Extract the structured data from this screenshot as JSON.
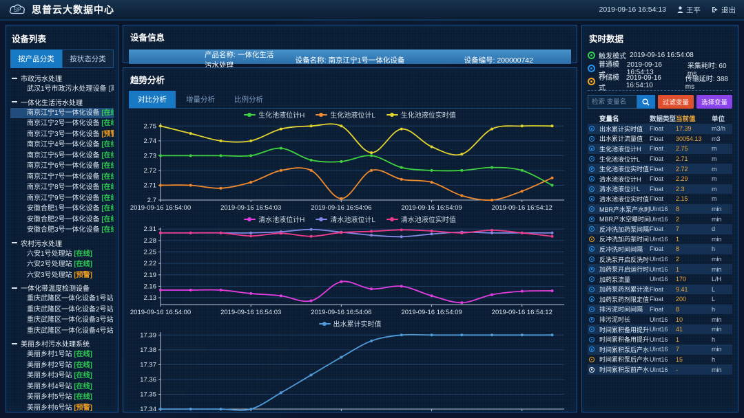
{
  "header": {
    "title": "思普云大数据中心",
    "logo": "SP",
    "datetime": "2019-09-16 16:54:13",
    "user": "王平",
    "logout": "退出"
  },
  "sidebar": {
    "title": "设备列表",
    "tabs": [
      {
        "label": "按产品分类",
        "active": true
      },
      {
        "label": "按状态分类",
        "active": false
      }
    ],
    "status_colors": {
      "在线": "#2fce53",
      "预警": "#f09d1e",
      "离线": "#8a97a8"
    },
    "groups": [
      {
        "label": "市政污水处理",
        "items": [
          {
            "name": "武汉1号市政污水处理设备",
            "status": "离线"
          }
        ]
      },
      {
        "label": "一体化生活污水处理",
        "items": [
          {
            "name": "南京江宁1号一体化设备",
            "status": "在线",
            "selected": true
          },
          {
            "name": "南京江宁2号一体化设备",
            "status": "在线"
          },
          {
            "name": "南京江宁3号一体化设备",
            "status": "预警"
          },
          {
            "name": "南京江宁4号一体化设备",
            "status": "在线"
          },
          {
            "name": "南京江宁5号一体化设备",
            "status": "在线"
          },
          {
            "name": "南京江宁6号一体化设备",
            "status": "在线"
          },
          {
            "name": "南京江宁7号一体化设备",
            "status": "在线"
          },
          {
            "name": "南京江宁8号一体化设备",
            "status": "在线"
          },
          {
            "name": "南京江宁9号一体化设备",
            "status": "在线"
          },
          {
            "name": "安徽合肥1号一体化设备",
            "status": "在线"
          },
          {
            "name": "安徽合肥2号一体化设备",
            "status": "在线"
          },
          {
            "name": "安徽合肥3号一体化设备",
            "status": "在线"
          }
        ]
      },
      {
        "label": "农村污水处理",
        "items": [
          {
            "name": "六安1号处理站",
            "status": "在线"
          },
          {
            "name": "六安2号处理站",
            "status": "在线"
          },
          {
            "name": "六安3号处理站",
            "status": "预警"
          }
        ]
      },
      {
        "label": "一体化带温度检测设备",
        "items": [
          {
            "name": "重庆武隆区一体化设备1号站",
            "status": "预警"
          },
          {
            "name": "重庆武隆区一体化设备2号站",
            "status": "预警"
          },
          {
            "name": "重庆武隆区一体化设备3号站",
            "status": "在线"
          },
          {
            "name": "重庆武隆区一体化设备4号站",
            "status": "预警"
          }
        ]
      },
      {
        "label": "美丽乡村污水处理系统",
        "items": [
          {
            "name": "美丽乡村1号站",
            "status": "在线"
          },
          {
            "name": "美丽乡村2号站",
            "status": "在线"
          },
          {
            "name": "美丽乡村3号站",
            "status": "在线"
          },
          {
            "name": "美丽乡村4号站",
            "status": "在线"
          },
          {
            "name": "美丽乡村5号站",
            "status": "在线"
          },
          {
            "name": "美丽乡村6号站",
            "status": "预警"
          }
        ]
      }
    ]
  },
  "device_info": {
    "title": "设备信息",
    "fields": [
      {
        "label": "产品名称:",
        "value": "一体化生活污水处理"
      },
      {
        "label": "设备名称:",
        "value": "南京江宁1号一体化设备"
      },
      {
        "label": "设备编号:",
        "value": "200000742"
      }
    ]
  },
  "trend": {
    "title": "趋势分析",
    "tabs": [
      {
        "label": "对比分析",
        "active": true
      },
      {
        "label": "增量分析",
        "active": false
      },
      {
        "label": "比例分析",
        "active": false
      }
    ]
  },
  "chart_data": [
    {
      "type": "line",
      "title": "生化池液位对比",
      "legend_position": "top",
      "grid": true,
      "x": [
        0,
        1,
        2,
        3,
        4,
        5,
        6,
        7,
        8,
        9,
        10,
        11,
        12,
        13
      ],
      "xlim": [
        0,
        13.4
      ],
      "x_ticks": [
        0,
        3,
        6,
        9,
        12
      ],
      "x_labels": [
        "2019-09-16 16:54:00",
        "2019-09-16 16:54:03",
        "2019-09-16 16:54:06",
        "2019-09-16 16:54:09",
        "2019-09-16 16:54:12"
      ],
      "ylim": [
        2.7,
        2.752
      ],
      "y_ticks": [
        2.7,
        2.71,
        2.72,
        2.73,
        2.74,
        2.75
      ],
      "y_tick_labels": [
        "2.7",
        "2.71",
        "2.72",
        "2.73",
        "2.74",
        "2.75"
      ],
      "series": [
        {
          "name": "生化池液位计H",
          "color": "#3fd23f",
          "values": [
            2.73,
            2.73,
            2.73,
            2.73,
            2.735,
            2.727,
            2.726,
            2.73,
            2.722,
            2.72,
            2.72,
            2.722,
            2.72,
            2.71
          ]
        },
        {
          "name": "生化池液位计L",
          "color": "#f28b2d",
          "values": [
            2.71,
            2.71,
            2.708,
            2.712,
            2.72,
            2.72,
            2.701,
            2.72,
            2.714,
            2.712,
            2.703,
            2.7,
            2.706,
            2.715
          ]
        },
        {
          "name": "生化池液位实时值",
          "color": "#e3d52e",
          "values": [
            2.75,
            2.745,
            2.74,
            2.74,
            2.748,
            2.75,
            2.75,
            2.732,
            2.748,
            2.736,
            2.731,
            2.748,
            2.75,
            2.75
          ]
        }
      ]
    },
    {
      "type": "line",
      "title": "清水池液位对比",
      "legend_position": "top",
      "grid": true,
      "x": [
        0,
        1,
        2,
        3,
        4,
        5,
        6,
        7,
        8,
        9,
        10,
        11,
        12,
        13
      ],
      "xlim": [
        0,
        13.4
      ],
      "x_ticks": [
        0,
        3,
        6,
        9,
        12
      ],
      "x_labels": [
        "2019-09-16 16:54:00",
        "2019-09-16 16:54:03",
        "2019-09-16 16:54:06",
        "2019-09-16 16:54:09",
        "2019-09-16 16:54:12"
      ],
      "ylim": [
        2.112,
        2.314
      ],
      "y_ticks": [
        2.13,
        2.16,
        2.19,
        2.22,
        2.25,
        2.28,
        2.31
      ],
      "y_tick_labels": [
        "2.13",
        "2.16",
        "2.19",
        "2.22",
        "2.25",
        "2.28",
        "2.31"
      ],
      "series": [
        {
          "name": "清水池液位计H",
          "color": "#e23ee2",
          "values": [
            2.15,
            2.15,
            2.15,
            2.141,
            2.135,
            2.122,
            2.172,
            2.153,
            2.16,
            2.135,
            2.117,
            2.138,
            2.147,
            2.148
          ]
        },
        {
          "name": "清水池液位计L",
          "color": "#8289e6",
          "values": [
            2.3,
            2.3,
            2.3,
            2.3,
            2.303,
            2.309,
            2.302,
            2.294,
            2.29,
            2.297,
            2.302,
            2.3,
            2.3,
            2.3
          ]
        },
        {
          "name": "清水池液位实时值",
          "color": "#f03a8c",
          "values": [
            2.3,
            2.3,
            2.3,
            2.292,
            2.299,
            2.291,
            2.301,
            2.304,
            2.308,
            2.305,
            2.3,
            2.307,
            2.3,
            2.291
          ]
        }
      ]
    },
    {
      "type": "line",
      "title": "出水累计",
      "legend_position": "top",
      "grid": true,
      "x": [
        0,
        1,
        2,
        3,
        4,
        5,
        6,
        7,
        8,
        9,
        10,
        11,
        12,
        13
      ],
      "xlim": [
        0,
        13.4
      ],
      "x_ticks": [
        0,
        3,
        6,
        9,
        12
      ],
      "x_labels": [
        "2019-09-16 16:54:00",
        "2019-09-16 16:54:03",
        "2019-09-16 16:54:06",
        "2019-09-16 16:54:09",
        "2019-09-16 16:54:12"
      ],
      "ylim": [
        17.34,
        17.392
      ],
      "y_ticks": [
        17.34,
        17.35,
        17.36,
        17.37,
        17.38,
        17.39
      ],
      "y_tick_labels": [
        "17.34",
        "17.35",
        "17.36",
        "17.37",
        "17.38",
        "17.39"
      ],
      "series": [
        {
          "name": "出水累计实时值",
          "color": "#4f9ad9",
          "values": [
            17.34,
            17.34,
            17.34,
            17.34,
            17.351,
            17.363,
            17.375,
            17.386,
            17.39,
            17.39,
            17.39,
            17.39,
            17.39,
            17.39
          ]
        }
      ]
    }
  ],
  "realtime": {
    "title": "实时数据",
    "modes": [
      {
        "label": "触发模式",
        "time": "2019-09-16 16:54:08",
        "color": "#2fce53",
        "extra_label": "",
        "extra_value": ""
      },
      {
        "label": "普通模式",
        "time": "2019-09-16 16:54:13",
        "color": "#2196f3",
        "extra_label": "采集耗时:",
        "extra_value": "60 ms"
      },
      {
        "label": "存储模式",
        "time": "2019-09-16 16:54:10",
        "color": "#f5a623",
        "extra_label": "传输延时:",
        "extra_value": "388 ms"
      }
    ],
    "search": {
      "placeholder": "检索 变量名"
    },
    "buttons": [
      {
        "label": "过滤变量",
        "color": "#e0502f"
      },
      {
        "label": "选择变量",
        "color": "#8a43e8"
      }
    ],
    "table": {
      "headers": [
        "变量名",
        "数据类型",
        "当前值",
        "单位"
      ],
      "rows": [
        {
          "icon": "#2196f3",
          "name": "出水累计实时值",
          "type": "Float",
          "value": "17.39",
          "unit": "m3/h"
        },
        {
          "icon": "#2196f3",
          "name": "出水累计流量值",
          "type": "Float",
          "value": "30054.13",
          "unit": "m3"
        },
        {
          "icon": "#2196f3",
          "name": "生化池液位计H",
          "type": "Float",
          "value": "2.75",
          "unit": "m"
        },
        {
          "icon": "#2196f3",
          "name": "生化池液位计L",
          "type": "Float",
          "value": "2.71",
          "unit": "m"
        },
        {
          "icon": "#2196f3",
          "name": "生化池液位实时值",
          "type": "Float",
          "value": "2.72",
          "unit": "m"
        },
        {
          "icon": "#2196f3",
          "name": "清水池液位计H",
          "type": "Float",
          "value": "2.29",
          "unit": "m"
        },
        {
          "icon": "#2196f3",
          "name": "清水池液位计L",
          "type": "Float",
          "value": "2.3",
          "unit": "m"
        },
        {
          "icon": "#2196f3",
          "name": "清水池液位实时值",
          "type": "Float",
          "value": "2.15",
          "unit": "m"
        },
        {
          "icon": "#2196f3",
          "name": "MBR产水泵产水时间分",
          "type": "UInt16",
          "value": "8",
          "unit": "min"
        },
        {
          "icon": "#2196f3",
          "name": "MBR产水空曝时间分",
          "type": "UInt16",
          "value": "2",
          "unit": "min"
        },
        {
          "icon": "#2196f3",
          "name": "反冲洗加药泵间隔时间",
          "type": "Float",
          "value": "7",
          "unit": "d"
        },
        {
          "icon": "#f5a623",
          "name": "反冲洗加药泵时间",
          "type": "UInt16",
          "value": "1",
          "unit": "min"
        },
        {
          "icon": "#2196f3",
          "name": "反冲洗时间间隔",
          "type": "Float",
          "value": "8",
          "unit": "h"
        },
        {
          "icon": "#2196f3",
          "name": "反洗泵开启反洗时长",
          "type": "UInt16",
          "value": "2",
          "unit": "min"
        },
        {
          "icon": "#2196f3",
          "name": "加药泵开启运行时间",
          "type": "UInt16",
          "value": "1",
          "unit": "min"
        },
        {
          "icon": "#2196f3",
          "name": "加药泵流量",
          "type": "UInt16",
          "value": "170",
          "unit": "L/H"
        },
        {
          "icon": "#2196f3",
          "name": "加药泵药剂累计流量",
          "type": "Float",
          "value": "9.41",
          "unit": "L"
        },
        {
          "icon": "#2196f3",
          "name": "加药泵药剂限定值",
          "type": "Float",
          "value": "200",
          "unit": "L"
        },
        {
          "icon": "#2196f3",
          "name": "排污泥时间间隔",
          "type": "Float",
          "value": "8",
          "unit": "h"
        },
        {
          "icon": "#2196f3",
          "name": "排污泥时长",
          "type": "UInt16",
          "value": "10",
          "unit": "min"
        },
        {
          "icon": "#2196f3",
          "name": "时间累积备用提升泵分",
          "type": "UInt16",
          "value": "41",
          "unit": "min"
        },
        {
          "icon": "#2196f3",
          "name": "时间累积备用提升泵时",
          "type": "UInt16",
          "value": "1",
          "unit": "h"
        },
        {
          "icon": "#2196f3",
          "name": "时间累积泵后产水电动阀分",
          "type": "UInt16",
          "value": "7",
          "unit": "min"
        },
        {
          "icon": "#f5a623",
          "name": "时间累积泵后产水电动阀时",
          "type": "UInt16",
          "value": "15",
          "unit": "h"
        },
        {
          "icon": "#e8f0f8",
          "name": "时间累积泵前产水电动阀分",
          "type": "UInt16",
          "value": "-",
          "unit": "min"
        }
      ]
    }
  }
}
